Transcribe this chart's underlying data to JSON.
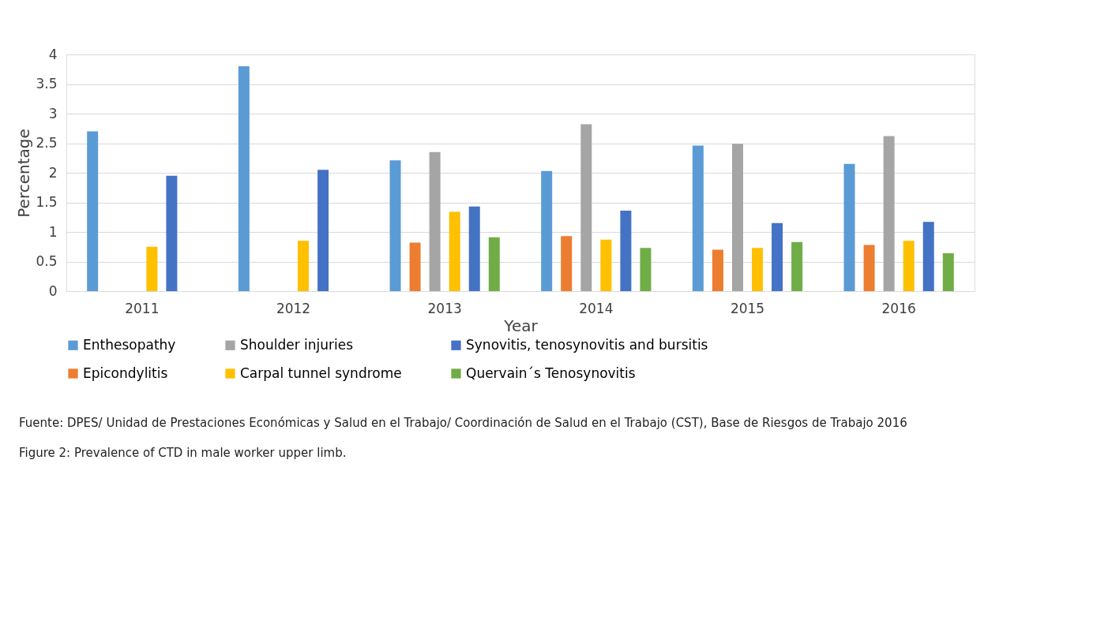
{
  "chart_data": {
    "type": "bar",
    "xlabel": "Year",
    "ylabel": "Percentage",
    "categories": [
      "2011",
      "2012",
      "2013",
      "2014",
      "2015",
      "2016"
    ],
    "series": [
      {
        "name": "Enthesopathy",
        "color": "#5b9bd5",
        "values": [
          2.7,
          3.8,
          2.21,
          2.03,
          2.46,
          2.15
        ]
      },
      {
        "name": "Epicondylitis",
        "color": "#ed7d31",
        "values": [
          null,
          null,
          0.82,
          0.93,
          0.7,
          0.78
        ]
      },
      {
        "name": "Shoulder injuries",
        "color": "#a5a5a5",
        "values": [
          null,
          null,
          2.35,
          2.82,
          2.49,
          2.62
        ]
      },
      {
        "name": "Carpal tunnel syndrome",
        "color": "#ffc000",
        "values": [
          0.75,
          0.85,
          1.34,
          0.87,
          0.73,
          0.85
        ]
      },
      {
        "name": "Synovitis, tenosynovitis and bursitis",
        "color": "#4472c4",
        "values": [
          1.95,
          2.05,
          1.43,
          1.36,
          1.15,
          1.17
        ]
      },
      {
        "name": "Quervain´s Tenosynovitis",
        "color": "#70ad47",
        "values": [
          null,
          null,
          0.91,
          0.73,
          0.83,
          0.64
        ]
      }
    ],
    "ylim": [
      0,
      4
    ],
    "yticks": [
      0,
      0.5,
      1,
      1.5,
      2,
      2.5,
      3,
      3.5,
      4
    ],
    "grid": "y",
    "legend": "bottom",
    "annotations": [
      "Fuente: DPES/ Unidad de Prestaciones Económicas y Salud en el Trabajo/ Coordinación de Salud en el Trabajo (CST), Base de Riesgos de Trabajo 2016",
      "Figure 2: Prevalence of CTD in male worker upper limb."
    ]
  }
}
